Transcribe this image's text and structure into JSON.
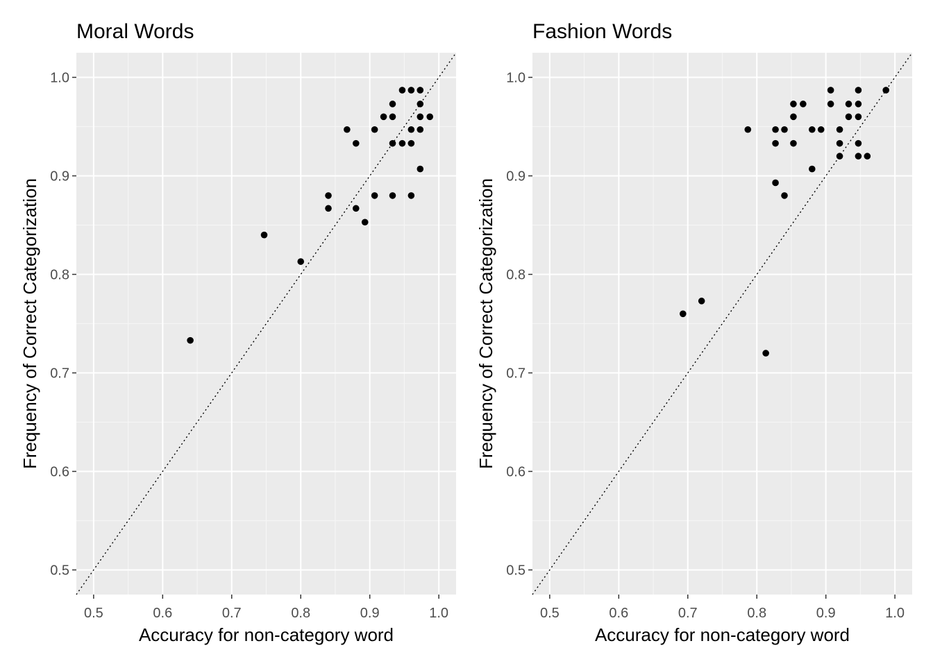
{
  "chart_data": [
    {
      "type": "scatter",
      "title": "Moral Words",
      "xlabel": "Accuracy for non-category word",
      "ylabel": "Frequency of Correct Categorization",
      "xlim": [
        0.475,
        1.025
      ],
      "ylim": [
        0.475,
        1.025
      ],
      "x_ticks": [
        "0.5",
        "0.6",
        "0.7",
        "0.8",
        "0.9",
        "1.0"
      ],
      "y_ticks": [
        "0.5",
        "0.6",
        "0.7",
        "0.8",
        "0.9",
        "1.0"
      ],
      "grid": true,
      "reference_line": "y = x (dotted)",
      "points": [
        {
          "x": 0.64,
          "y": 0.733
        },
        {
          "x": 0.747,
          "y": 0.84
        },
        {
          "x": 0.8,
          "y": 0.813
        },
        {
          "x": 0.84,
          "y": 0.88
        },
        {
          "x": 0.84,
          "y": 0.867
        },
        {
          "x": 0.867,
          "y": 0.947
        },
        {
          "x": 0.88,
          "y": 0.933
        },
        {
          "x": 0.88,
          "y": 0.867
        },
        {
          "x": 0.893,
          "y": 0.853
        },
        {
          "x": 0.907,
          "y": 0.947
        },
        {
          "x": 0.907,
          "y": 0.88
        },
        {
          "x": 0.92,
          "y": 0.96
        },
        {
          "x": 0.933,
          "y": 0.973
        },
        {
          "x": 0.933,
          "y": 0.96
        },
        {
          "x": 0.933,
          "y": 0.933
        },
        {
          "x": 0.933,
          "y": 0.88
        },
        {
          "x": 0.947,
          "y": 0.987
        },
        {
          "x": 0.947,
          "y": 0.933
        },
        {
          "x": 0.96,
          "y": 0.987
        },
        {
          "x": 0.96,
          "y": 0.947
        },
        {
          "x": 0.96,
          "y": 0.933
        },
        {
          "x": 0.96,
          "y": 0.88
        },
        {
          "x": 0.973,
          "y": 0.987
        },
        {
          "x": 0.973,
          "y": 0.973
        },
        {
          "x": 0.973,
          "y": 0.96
        },
        {
          "x": 0.973,
          "y": 0.947
        },
        {
          "x": 0.973,
          "y": 0.907
        },
        {
          "x": 0.987,
          "y": 0.96
        }
      ]
    },
    {
      "type": "scatter",
      "title": "Fashion Words",
      "xlabel": "Accuracy for non-category word",
      "ylabel": "Frequency of Correct Categorization",
      "xlim": [
        0.475,
        1.025
      ],
      "ylim": [
        0.475,
        1.025
      ],
      "x_ticks": [
        "0.5",
        "0.6",
        "0.7",
        "0.8",
        "0.9",
        "1.0"
      ],
      "y_ticks": [
        "0.5",
        "0.6",
        "0.7",
        "0.8",
        "0.9",
        "1.0"
      ],
      "grid": true,
      "reference_line": "y = x (dotted)",
      "points": [
        {
          "x": 0.693,
          "y": 0.76
        },
        {
          "x": 0.72,
          "y": 0.773
        },
        {
          "x": 0.787,
          "y": 0.947
        },
        {
          "x": 0.813,
          "y": 0.72
        },
        {
          "x": 0.827,
          "y": 0.947
        },
        {
          "x": 0.827,
          "y": 0.933
        },
        {
          "x": 0.827,
          "y": 0.893
        },
        {
          "x": 0.84,
          "y": 0.947
        },
        {
          "x": 0.84,
          "y": 0.88
        },
        {
          "x": 0.853,
          "y": 0.973
        },
        {
          "x": 0.853,
          "y": 0.96
        },
        {
          "x": 0.853,
          "y": 0.933
        },
        {
          "x": 0.867,
          "y": 0.973
        },
        {
          "x": 0.88,
          "y": 0.947
        },
        {
          "x": 0.88,
          "y": 0.907
        },
        {
          "x": 0.893,
          "y": 0.947
        },
        {
          "x": 0.907,
          "y": 0.987
        },
        {
          "x": 0.907,
          "y": 0.973
        },
        {
          "x": 0.92,
          "y": 0.947
        },
        {
          "x": 0.92,
          "y": 0.933
        },
        {
          "x": 0.92,
          "y": 0.92
        },
        {
          "x": 0.933,
          "y": 0.973
        },
        {
          "x": 0.933,
          "y": 0.96
        },
        {
          "x": 0.947,
          "y": 0.987
        },
        {
          "x": 0.947,
          "y": 0.973
        },
        {
          "x": 0.947,
          "y": 0.96
        },
        {
          "x": 0.947,
          "y": 0.933
        },
        {
          "x": 0.947,
          "y": 0.92
        },
        {
          "x": 0.96,
          "y": 0.92
        },
        {
          "x": 0.987,
          "y": 0.987
        }
      ]
    }
  ],
  "colors": {
    "panel_background": "#ebebeb",
    "grid_major": "#ffffff",
    "grid_minor": "#f5f5f5",
    "point": "#000000",
    "tick_label": "#4d4d4d",
    "text": "#000000"
  }
}
